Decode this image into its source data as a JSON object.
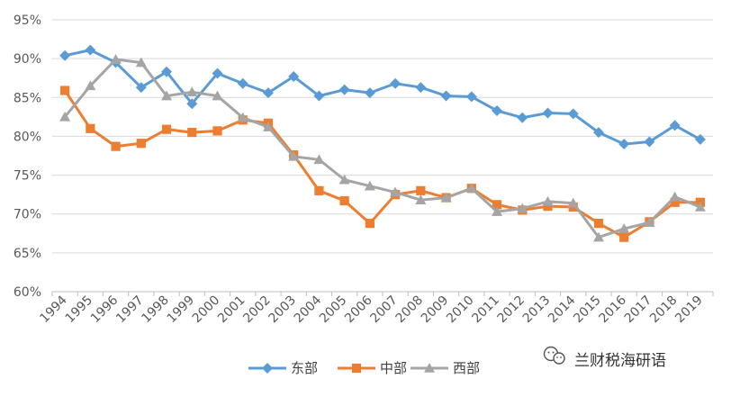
{
  "chart_data": {
    "type": "line",
    "title": "",
    "xlabel": "",
    "ylabel": "",
    "categories": [
      "1994",
      "1995",
      "1996",
      "1997",
      "1998",
      "1999",
      "2000",
      "2001",
      "2002",
      "2003",
      "2004",
      "2005",
      "2006",
      "2007",
      "2008",
      "2009",
      "2010",
      "2011",
      "2012",
      "2013",
      "2014",
      "2015",
      "2016",
      "2017",
      "2018",
      "2019"
    ],
    "ylim": [
      0.6,
      0.95
    ],
    "yticks": [
      "60%",
      "65%",
      "70%",
      "75%",
      "80%",
      "85%",
      "90%",
      "95%"
    ],
    "legend_position": "bottom",
    "grid": "horizontal",
    "series": [
      {
        "name": "东部",
        "color": "#5B9BD5",
        "marker": "diamond",
        "values": [
          0.904,
          0.911,
          0.895,
          0.863,
          0.883,
          0.842,
          0.881,
          0.868,
          0.856,
          0.877,
          0.852,
          0.86,
          0.856,
          0.868,
          0.863,
          0.852,
          0.851,
          0.833,
          0.824,
          0.83,
          0.829,
          0.805,
          0.79,
          0.793,
          0.814,
          0.796
        ]
      },
      {
        "name": "中部",
        "color": "#ED7D31",
        "marker": "square",
        "values": [
          0.859,
          0.81,
          0.787,
          0.791,
          0.809,
          0.805,
          0.807,
          0.821,
          0.817,
          0.776,
          0.73,
          0.717,
          0.688,
          0.725,
          0.73,
          0.721,
          0.733,
          0.712,
          0.705,
          0.71,
          0.709,
          0.688,
          0.67,
          0.69,
          0.715,
          0.715
        ]
      },
      {
        "name": "西部",
        "color": "#A5A5A5",
        "marker": "triangle",
        "values": [
          0.825,
          0.865,
          0.899,
          0.895,
          0.852,
          0.857,
          0.852,
          0.824,
          0.812,
          0.774,
          0.77,
          0.744,
          0.736,
          0.728,
          0.718,
          0.721,
          0.733,
          0.703,
          0.707,
          0.716,
          0.714,
          0.67,
          0.681,
          0.689,
          0.722,
          0.709
        ]
      }
    ]
  },
  "watermark": {
    "text": "兰财税海研语",
    "icon": "wechat-icon"
  }
}
